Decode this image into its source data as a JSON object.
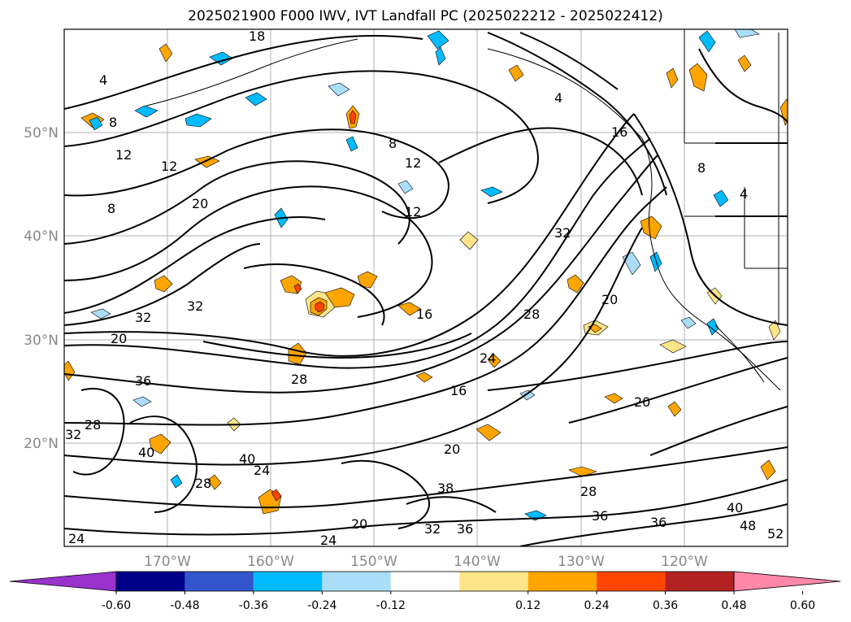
{
  "figure": {
    "title": "2025021900 F000 IWV, IVT Landfall PC (2025022212 - 2025022412)"
  },
  "map": {
    "projection": "plate-carree",
    "lon_range": [
      -180,
      -110
    ],
    "lat_range": [
      10,
      60
    ],
    "gridlines": true,
    "latitude_labels": [
      "50°N",
      "40°N",
      "30°N",
      "20°N"
    ],
    "longitude_labels": [
      "170°W",
      "160°W",
      "150°W",
      "140°W",
      "130°W",
      "120°W"
    ],
    "iwv_contour_labels": [
      "8",
      "4",
      "8",
      "12",
      "8",
      "20",
      "32",
      "36",
      "28",
      "32",
      "28",
      "40",
      "16",
      "24",
      "40",
      "24",
      "28",
      "12",
      "12",
      "20",
      "16",
      "20",
      "24",
      "28",
      "32",
      "38",
      "20",
      "32",
      "28",
      "36",
      "36",
      "40",
      "48",
      "52",
      "20",
      "4",
      "18",
      "8",
      "16",
      "4",
      "12",
      "36",
      "32",
      "24",
      "20"
    ],
    "contour_color": "#000000"
  },
  "colorbar": {
    "ticks": [
      "-0.60",
      "-0.48",
      "-0.36",
      "-0.24",
      "-0.12",
      "0.12",
      "0.24",
      "0.36",
      "0.48",
      "0.60"
    ],
    "bins": [
      {
        "range": "< -0.60",
        "color": "#9933cc"
      },
      {
        "range": "-0.60 to -0.48",
        "color": "#000088"
      },
      {
        "range": "-0.48 to -0.36",
        "color": "#3355cc"
      },
      {
        "range": "-0.36 to -0.24",
        "color": "#00bbff"
      },
      {
        "range": "-0.24 to -0.12",
        "color": "#aaddf8"
      },
      {
        "range": "-0.12 to 0.12",
        "color": "#ffffff"
      },
      {
        "range": "0.12 to 0.24",
        "color": "#ffe58a"
      },
      {
        "range": "0.24 to 0.36",
        "color": "#ffa500"
      },
      {
        "range": "0.36 to 0.48",
        "color": "#ff4500"
      },
      {
        "range": "0.48 to 0.60",
        "color": "#b22222"
      },
      {
        "range": "> 0.60",
        "color": "#ff88aa"
      }
    ]
  }
}
